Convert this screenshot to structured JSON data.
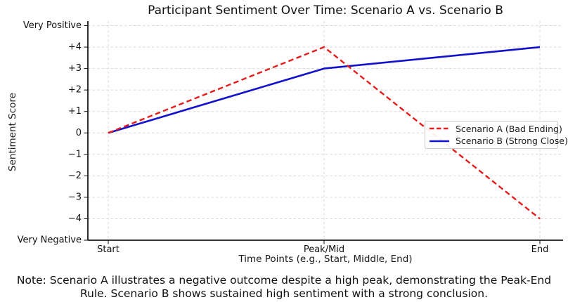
{
  "figure": {
    "kind": "static-chart-image"
  },
  "colors": {
    "scenario_a": "#e51c1c",
    "scenario_b": "#1212cc",
    "grid": "#d9d9d9",
    "axis": "#1a1a1a",
    "text": "#111111"
  },
  "chart_data": {
    "type": "line",
    "title": "Participant Sentiment Over Time: Scenario A vs. Scenario B",
    "xlabel": "Time Points (e.g., Start, Middle, End)",
    "ylabel": "Sentiment Score",
    "categories": [
      "Start",
      "Peak/Mid",
      "End"
    ],
    "series": [
      {
        "name": "Scenario A (Bad Ending)",
        "values": [
          0,
          4,
          -4
        ],
        "color": "#e51c1c",
        "style": "dashed"
      },
      {
        "name": "Scenario B (Strong Close)",
        "values": [
          0,
          3,
          4
        ],
        "color": "#1212cc",
        "style": "solid"
      }
    ],
    "ylim": [
      -5,
      5
    ],
    "yticks": [
      {
        "value": 5,
        "label": "Very Positive"
      },
      {
        "value": 4,
        "label": "+4"
      },
      {
        "value": 3,
        "label": "+3"
      },
      {
        "value": 2,
        "label": "+2"
      },
      {
        "value": 1,
        "label": "+1"
      },
      {
        "value": 0,
        "label": "0"
      },
      {
        "value": -1,
        "label": "−1"
      },
      {
        "value": -2,
        "label": "−2"
      },
      {
        "value": -3,
        "label": "−3"
      },
      {
        "value": -4,
        "label": "−4"
      },
      {
        "value": -5,
        "label": "Very Negative"
      }
    ],
    "grid": true,
    "legend_position": "center right",
    "note_lines": [
      "Note: Scenario A illustrates a negative outcome despite a high peak, demonstrating the Peak-End",
      "Rule. Scenario B shows sustained high sentiment with a strong conclusion."
    ]
  }
}
